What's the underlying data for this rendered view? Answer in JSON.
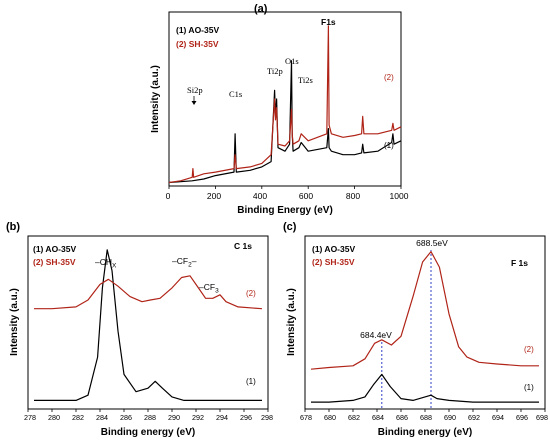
{
  "colors": {
    "series1": "#000000",
    "series2": "#b02418",
    "peak_marker": "#3040c8"
  },
  "chart_data": [
    {
      "panel_label": "(a)",
      "type": "line",
      "xlabel": "Binding Energy (eV)",
      "ylabel": "Intensity (a.u.)",
      "xlim": [
        0,
        1000
      ],
      "x_ticks": [
        "0",
        "200",
        "400",
        "600",
        "800",
        "1000"
      ],
      "legend": [
        "(1) AO-35V",
        "(2) SH-35V"
      ],
      "series": [
        {
          "name": "(1) AO-35V",
          "tag": "(1)",
          "color": "#000000",
          "x": [
            0,
            100,
            150,
            200,
            280,
            285,
            290,
            350,
            400,
            440,
            455,
            459,
            464,
            470,
            500,
            520,
            528,
            531,
            535,
            560,
            570,
            600,
            680,
            687,
            690,
            700,
            750,
            800,
            830,
            835,
            840,
            900,
            960,
            965,
            970,
            1000
          ],
          "y": [
            0.02,
            0.03,
            0.04,
            0.06,
            0.08,
            0.3,
            0.08,
            0.09,
            0.11,
            0.14,
            0.55,
            0.4,
            0.5,
            0.22,
            0.2,
            0.24,
            0.72,
            0.3,
            0.2,
            0.22,
            0.25,
            0.2,
            0.22,
            0.33,
            0.22,
            0.2,
            0.18,
            0.18,
            0.19,
            0.24,
            0.19,
            0.2,
            0.25,
            0.3,
            0.24,
            0.26
          ]
        },
        {
          "name": "(2) SH-35V",
          "tag": "(2)",
          "color": "#b02418",
          "x": [
            0,
            50,
            100,
            103,
            106,
            150,
            200,
            280,
            285,
            290,
            350,
            400,
            440,
            455,
            459,
            464,
            470,
            500,
            520,
            528,
            531,
            535,
            560,
            570,
            600,
            680,
            687,
            690,
            700,
            750,
            800,
            830,
            835,
            840,
            900,
            960,
            965,
            970,
            1000
          ],
          "y": [
            0.02,
            0.03,
            0.05,
            0.1,
            0.05,
            0.07,
            0.08,
            0.1,
            0.18,
            0.1,
            0.11,
            0.13,
            0.18,
            0.5,
            0.38,
            0.45,
            0.24,
            0.23,
            0.26,
            0.44,
            0.3,
            0.24,
            0.26,
            0.3,
            0.26,
            0.3,
            0.92,
            0.35,
            0.3,
            0.28,
            0.29,
            0.3,
            0.4,
            0.3,
            0.3,
            0.32,
            0.36,
            0.32,
            0.34
          ]
        }
      ],
      "annotations": [
        "Si2p",
        "C1s",
        "Ti2p",
        "O1s",
        "Ti2s",
        "F1s"
      ]
    },
    {
      "panel_label": "(b)",
      "type": "line",
      "xlabel": "Binding energy (eV)",
      "ylabel": "Intensity (a.u.)",
      "xlim": [
        278,
        298
      ],
      "x_ticks": [
        "278",
        "280",
        "282",
        "284",
        "286",
        "288",
        "290",
        "292",
        "294",
        "296",
        "298"
      ],
      "legend": [
        "(1) AO-35V",
        "(2) SH-35V"
      ],
      "panel_title": "C 1s",
      "series": [
        {
          "name": "(1) AO-35V",
          "tag": "(1)",
          "color": "#000000",
          "x": [
            278.5,
            280,
            282,
            283,
            283.8,
            284.2,
            284.6,
            285.0,
            285.5,
            286,
            287,
            288,
            288.6,
            289.2,
            290,
            291,
            292,
            294,
            296,
            297.5
          ],
          "y": [
            0.05,
            0.05,
            0.05,
            0.08,
            0.3,
            0.7,
            0.92,
            0.8,
            0.45,
            0.2,
            0.1,
            0.12,
            0.16,
            0.12,
            0.07,
            0.05,
            0.05,
            0.05,
            0.05,
            0.05
          ]
        },
        {
          "name": "(2) SH-35V",
          "tag": "(2)",
          "color": "#b02418",
          "x": [
            278.5,
            280,
            282,
            283,
            284,
            284.7,
            285.5,
            286.5,
            287.5,
            288.2,
            289,
            290,
            290.8,
            291.5,
            292.2,
            292.8,
            293.4,
            294,
            294.5,
            295.5,
            297.5
          ],
          "y": [
            0.58,
            0.58,
            0.59,
            0.63,
            0.72,
            0.75,
            0.71,
            0.65,
            0.62,
            0.63,
            0.64,
            0.7,
            0.76,
            0.77,
            0.7,
            0.64,
            0.64,
            0.66,
            0.62,
            0.59,
            0.58
          ]
        }
      ],
      "annotations": [
        "-CHX",
        "-CF2-",
        "-CF3"
      ]
    },
    {
      "panel_label": "(c)",
      "type": "line",
      "xlabel": "Binding energy (eV)",
      "ylabel": "Intensity (a.u.)",
      "xlim": [
        678,
        698
      ],
      "x_ticks": [
        "678",
        "680",
        "682",
        "684",
        "686",
        "688",
        "690",
        "692",
        "694",
        "696",
        "698"
      ],
      "legend": [
        "(1) AO-35V",
        "(2) SH-35V"
      ],
      "panel_title": "F 1s",
      "peak_labels": [
        {
          "x": 684.4,
          "label": "684.4eV"
        },
        {
          "x": 688.5,
          "label": "688.5eV"
        }
      ],
      "series": [
        {
          "name": "(1) AO-35V",
          "tag": "(1)",
          "color": "#000000",
          "x": [
            678.5,
            680,
            682,
            683,
            683.7,
            684.4,
            685.1,
            686,
            687,
            688,
            688.5,
            689,
            690,
            692,
            694,
            696,
            697.5
          ],
          "y": [
            0.04,
            0.04,
            0.05,
            0.07,
            0.14,
            0.2,
            0.13,
            0.06,
            0.05,
            0.07,
            0.08,
            0.06,
            0.05,
            0.04,
            0.04,
            0.04,
            0.04
          ]
        },
        {
          "name": "(2) SH-35V",
          "tag": "(2)",
          "color": "#b02418",
          "x": [
            678.5,
            680,
            682,
            683,
            683.8,
            684.4,
            685.2,
            686,
            687,
            687.8,
            688.5,
            689.2,
            690,
            690.8,
            691.5,
            692.5,
            694,
            696,
            697.5
          ],
          "y": [
            0.23,
            0.24,
            0.25,
            0.29,
            0.38,
            0.4,
            0.37,
            0.42,
            0.65,
            0.85,
            0.91,
            0.82,
            0.55,
            0.36,
            0.3,
            0.27,
            0.26,
            0.25,
            0.25
          ]
        }
      ]
    }
  ]
}
